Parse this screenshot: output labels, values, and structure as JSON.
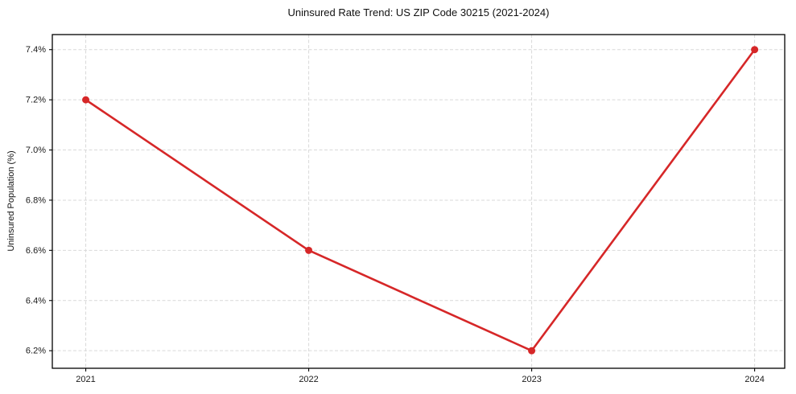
{
  "chart_data": {
    "type": "line",
    "title": "Uninsured Rate Trend: US ZIP Code 30215 (2021-2024)",
    "xlabel": "",
    "ylabel": "Uninsured Population (%)",
    "x": [
      2021,
      2022,
      2023,
      2024
    ],
    "x_tick_labels": [
      "2021",
      "2022",
      "2023",
      "2024"
    ],
    "y_ticks": [
      6.2,
      6.4,
      6.6,
      6.8,
      7.0,
      7.2,
      7.4
    ],
    "y_tick_labels": [
      "6.2%",
      "6.4%",
      "6.6%",
      "6.8%",
      "7.0%",
      "7.2%",
      "7.4%"
    ],
    "xlim": [
      2020.85,
      2024.135
    ],
    "ylim": [
      6.13,
      7.46
    ],
    "grid": true,
    "legend_position": "none",
    "series": [
      {
        "values": [
          7.2,
          6.6,
          6.2,
          7.4
        ],
        "color": "#d62728",
        "marker": "circle"
      }
    ]
  },
  "colors": {
    "line": "#d62728",
    "grid": "#d9d9d9",
    "axis": "#000000",
    "background": "#ffffff",
    "text": "#1a1a1a"
  }
}
